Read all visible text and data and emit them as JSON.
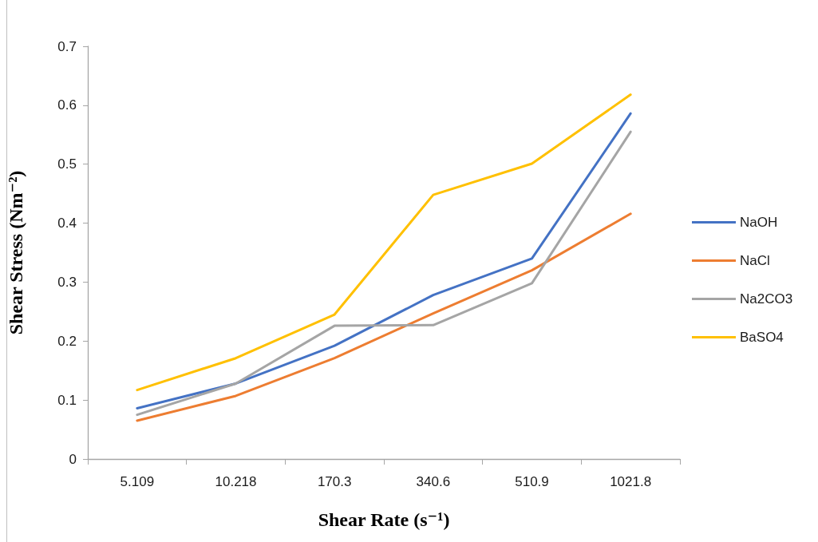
{
  "chart_data": {
    "type": "line",
    "xlabel": "Shear Rate (s⁻¹)",
    "ylabel": "Shear Stress (Nm⁻²)",
    "categories": [
      "5.109",
      "10.218",
      "170.3",
      "340.6",
      "510.9",
      "1021.8"
    ],
    "series": [
      {
        "name": "NaOH",
        "color": "#4472c4",
        "values": [
          0.086,
          0.128,
          0.192,
          0.278,
          0.34,
          0.586
        ]
      },
      {
        "name": "NaCl",
        "color": "#ed7d31",
        "values": [
          0.065,
          0.107,
          0.171,
          0.247,
          0.32,
          0.416
        ]
      },
      {
        "name": "Na2CO3",
        "color": "#a5a5a5",
        "values": [
          0.075,
          0.128,
          0.226,
          0.227,
          0.298,
          0.555
        ]
      },
      {
        "name": "BaSO4",
        "color": "#ffc000",
        "values": [
          0.117,
          0.171,
          0.245,
          0.448,
          0.501,
          0.618
        ]
      }
    ],
    "ylim": [
      0,
      0.7
    ],
    "yticks": [
      0,
      0.1,
      0.2,
      0.3,
      0.4,
      0.5,
      0.6,
      0.7
    ],
    "grid": false,
    "legend": "right",
    "marker": "none"
  }
}
